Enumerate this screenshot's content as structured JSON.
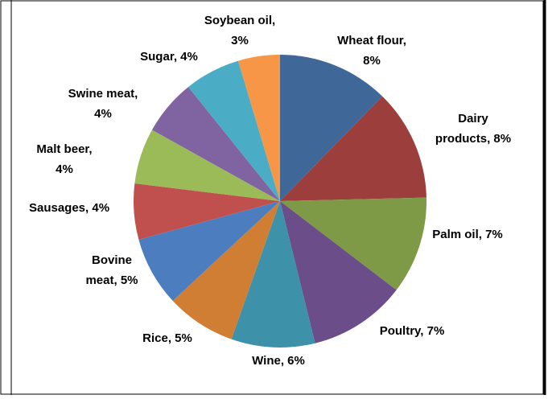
{
  "chart_data": {
    "type": "pie",
    "values": [
      8,
      8,
      7,
      7,
      6,
      5,
      5,
      4,
      4,
      4,
      4,
      3
    ],
    "value_labels": [
      "Wheat flour, 8%",
      "Dairy products, 8%",
      "Palm oil, 7%",
      "Poultry, 7%",
      "Wine, 6%",
      "Rice, 5%",
      "Bovine meat, 5%",
      "Sausages, 4%",
      "Malt beer, 4%",
      "Swine meat, 4%",
      "Sugar, 4%",
      "Soybean oil, 3%"
    ],
    "colors": [
      "#3f6797",
      "#9c3e3b",
      "#7e9a47",
      "#6b4d8a",
      "#3d91a8",
      "#d07e34",
      "#4c7ebf",
      "#c0504d",
      "#9bbb59",
      "#8064a2",
      "#4bacc6",
      "#f79646"
    ]
  }
}
